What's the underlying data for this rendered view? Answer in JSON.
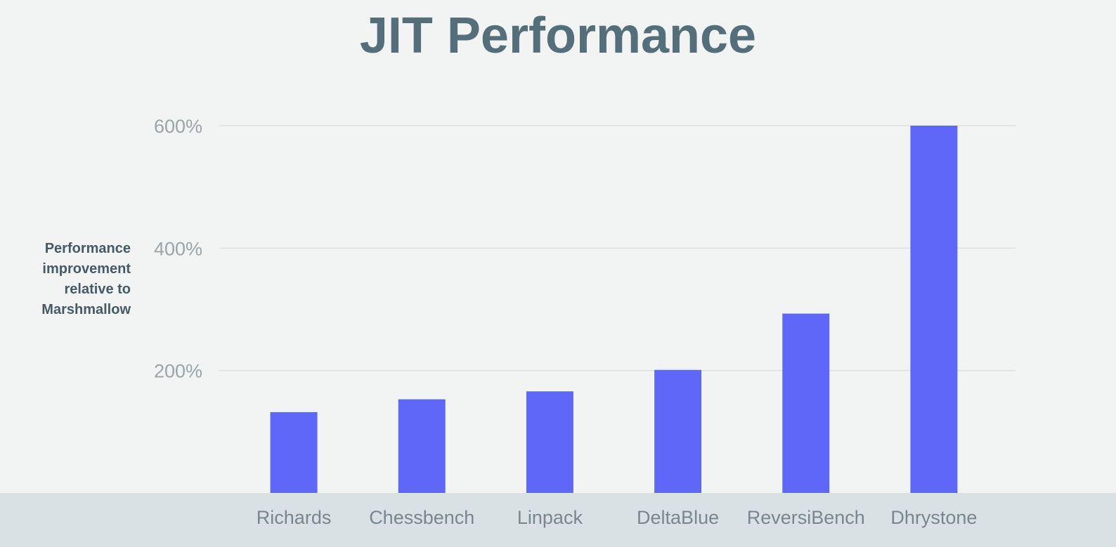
{
  "chart_data": {
    "type": "bar",
    "title": "JIT Performance",
    "ylabel_lines": [
      "Performance",
      "improvement",
      "relative to",
      "Marshmallow"
    ],
    "xlabel": "",
    "categories": [
      "Richards",
      "Chessbench",
      "Linpack",
      "DeltaBlue",
      "ReversiBench",
      "Dhrystone"
    ],
    "values": [
      132,
      153,
      166,
      201,
      293,
      600
    ],
    "ylim": [
      0,
      600
    ],
    "yticks": [
      200,
      400,
      600
    ],
    "ytick_labels": [
      "200%",
      "400%",
      "600%"
    ],
    "grid": true,
    "legend": "none",
    "bar_color": "#5f67f8",
    "grid_color": "#dde1e3"
  }
}
